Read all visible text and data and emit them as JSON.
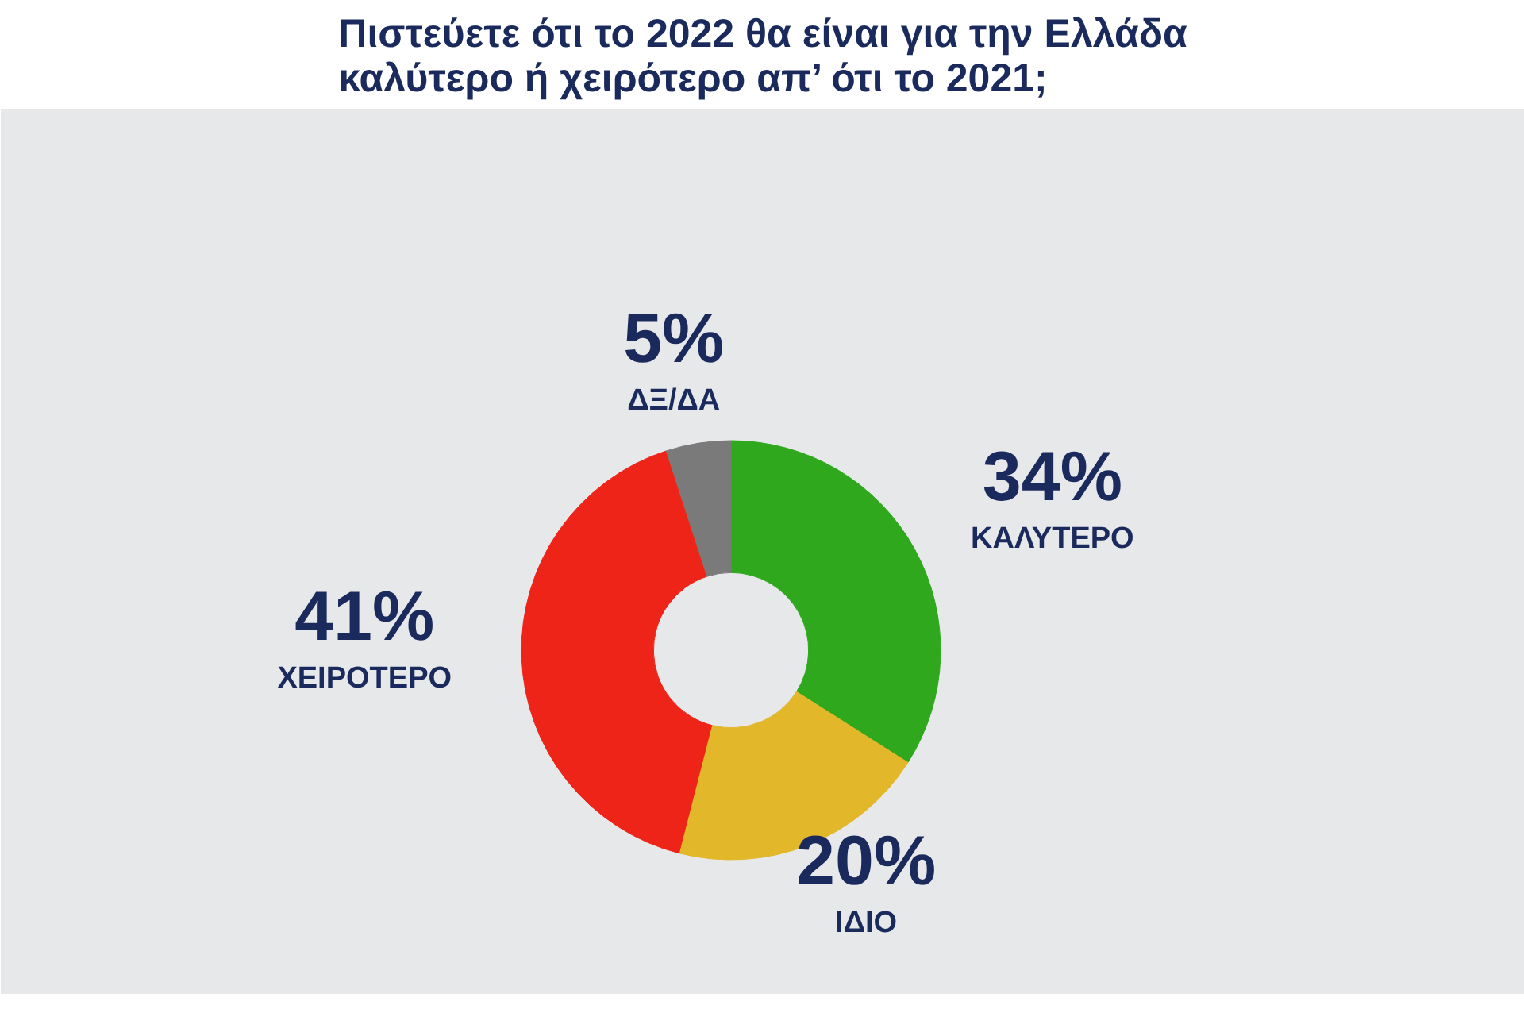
{
  "chart_data": {
    "type": "donut",
    "title": "Πιστεύετε ότι το 2022 θα είναι για την Ελλάδα καλύτερο ή χειρότερο απ’ ότι το 2021;",
    "categories": [
      "ΚΑΛΥΤΕΡΟ",
      "ΙΔΙΟ",
      "ΧΕΙΡΟΤΕΡΟ",
      "ΔΞ/ΔΑ"
    ],
    "values": [
      34,
      20,
      41,
      5
    ],
    "colors": [
      "#2fa81e",
      "#e3b72a",
      "#ee2418",
      "#7a7a7a"
    ],
    "value_labels": [
      "34%",
      "20%",
      "41%",
      "5%"
    ]
  }
}
